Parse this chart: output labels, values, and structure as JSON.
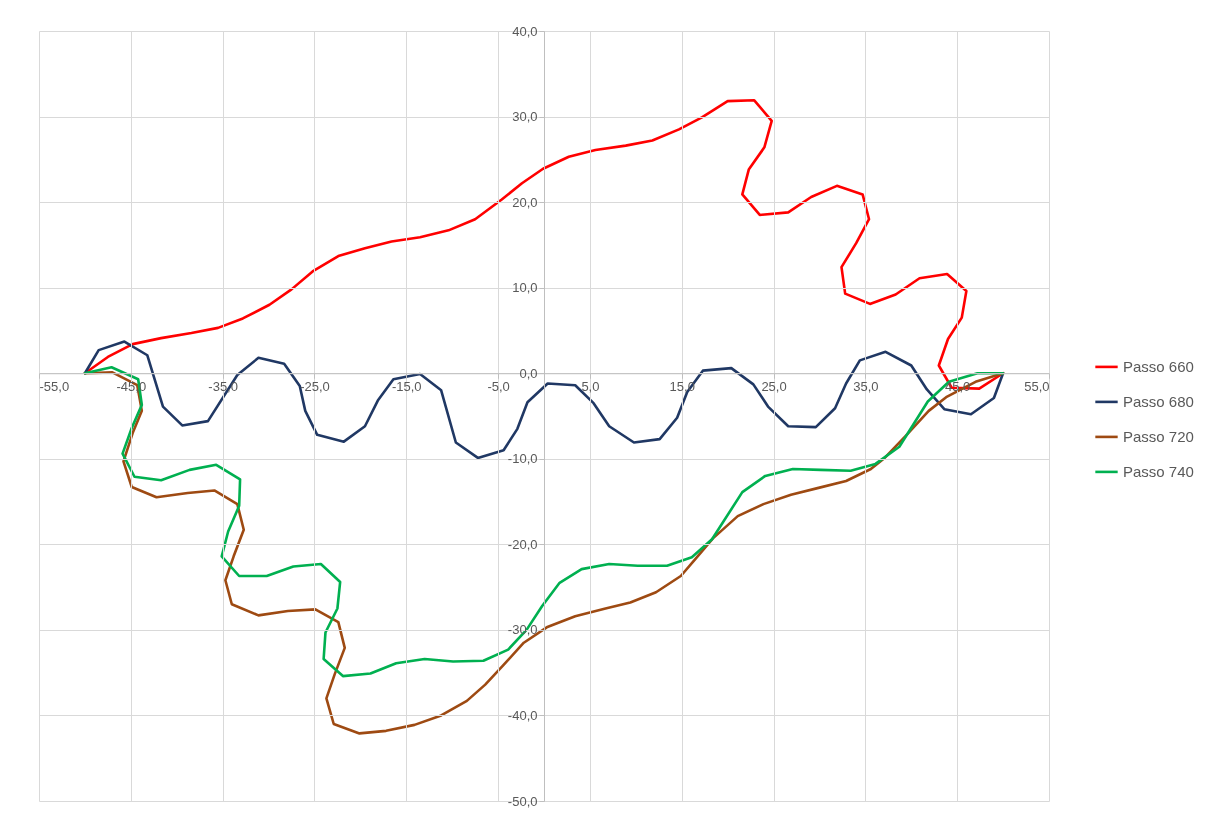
{
  "chart_data": {
    "type": "line",
    "marker": "none",
    "line_style": "solid",
    "grid": true,
    "legend": "right",
    "xlim": [
      -55,
      55
    ],
    "ylim": [
      -50,
      40
    ],
    "xticks": [
      {
        "value": -55,
        "label": "-55,0"
      },
      {
        "value": -45,
        "label": "-45,0"
      },
      {
        "value": -35,
        "label": "-35,0"
      },
      {
        "value": -25,
        "label": "-25,0"
      },
      {
        "value": -15,
        "label": "-15,0"
      },
      {
        "value": -5,
        "label": "-5,0"
      },
      {
        "value": 5,
        "label": "5,0"
      },
      {
        "value": 15,
        "label": "15,0"
      },
      {
        "value": 25,
        "label": "25,0"
      },
      {
        "value": 35,
        "label": "35,0"
      },
      {
        "value": 45,
        "label": "45,0"
      },
      {
        "value": 55,
        "label": "55,0"
      }
    ],
    "yticks": [
      {
        "value": -50,
        "label": "-50,0"
      },
      {
        "value": -40,
        "label": "-40,0"
      },
      {
        "value": -30,
        "label": "-30,0"
      },
      {
        "value": -20,
        "label": "-20,0"
      },
      {
        "value": -10,
        "label": "-10,0"
      },
      {
        "value": 0,
        "label": "0,0"
      },
      {
        "value": 10,
        "label": "10,0"
      },
      {
        "value": 20,
        "label": "20,0"
      },
      {
        "value": 30,
        "label": "30,0"
      },
      {
        "value": 40,
        "label": "40,0"
      }
    ],
    "series": [
      {
        "name": "Passo 660",
        "color": "#ff0000",
        "x": [
          -50,
          -47.5,
          -44.8,
          -41.7,
          -38.4,
          -35.5,
          -32.8,
          -29.9,
          -27.5,
          -25.2,
          -22.4,
          -19.5,
          -16.6,
          -13.5,
          -10.4,
          -7.5,
          -4.6,
          -2.4,
          -0.1,
          2.7,
          5.6,
          8.9,
          11.8,
          14.7,
          17.2,
          20.0,
          22.9,
          24.8,
          24.0,
          22.3,
          21.6,
          23.5,
          26.6,
          29.1,
          31.9,
          34.7,
          35.4,
          34.0,
          32.4,
          32.8,
          35.5,
          38.3,
          40.9,
          43.9,
          46.0,
          45.5,
          44.0,
          43.0,
          44.4,
          47.4,
          50
        ],
        "values": [
          0,
          1.9,
          3.4,
          4.1,
          4.7,
          5.3,
          6.4,
          8.0,
          9.8,
          11.9,
          13.7,
          14.6,
          15.4,
          15.9,
          16.7,
          18.0,
          20.3,
          22.2,
          23.9,
          25.3,
          26.1,
          26.6,
          27.2,
          28.5,
          29.9,
          31.8,
          31.9,
          29.5,
          26.4,
          23.8,
          20.9,
          18.5,
          18.8,
          20.6,
          21.9,
          20.9,
          18.0,
          15.2,
          12.4,
          9.3,
          8.1,
          9.2,
          11.1,
          11.6,
          9.6,
          6.5,
          4.0,
          0.9,
          -1.7,
          -1.8,
          0
        ]
      },
      {
        "name": "Passo 680",
        "color": "#203864",
        "x": [
          -50,
          -48.5,
          -45.7,
          -43.2,
          -41.5,
          -39.4,
          -36.6,
          -33.4,
          -31.1,
          -28.3,
          -26.6,
          -26.0,
          -24.7,
          -21.8,
          -19.5,
          -18.1,
          -16.4,
          -13.5,
          -11.2,
          -9.6,
          -7.2,
          -4.4,
          -2.9,
          -1.8,
          0.4,
          3.4,
          5.4,
          7.1,
          9.8,
          12.6,
          14.5,
          15.6,
          17.3,
          20.4,
          22.8,
          24.4,
          26.6,
          29.6,
          31.7,
          32.9,
          34.4,
          37.2,
          40.0,
          41.7,
          43.6,
          46.5,
          49.0,
          50
        ],
        "values": [
          0,
          2.7,
          3.7,
          2.1,
          -3.9,
          -6.1,
          -5.6,
          -0.2,
          1.8,
          1.1,
          -1.5,
          -4.4,
          -7.2,
          -8.0,
          -6.2,
          -3.2,
          -0.7,
          -0.1,
          -2.0,
          -8.1,
          -9.9,
          -9.0,
          -6.5,
          -3.4,
          -1.2,
          -1.4,
          -3.5,
          -6.2,
          -8.1,
          -7.7,
          -5.2,
          -2.2,
          0.3,
          0.6,
          -1.3,
          -3.9,
          -6.2,
          -6.3,
          -4.1,
          -1.2,
          1.5,
          2.5,
          0.9,
          -1.9,
          -4.2,
          -4.8,
          -2.9,
          0
        ]
      },
      {
        "name": "Passo 720",
        "color": "#9e4a12",
        "x": [
          -50,
          -47.0,
          -44.3,
          -43.8,
          -44.8,
          -45.8,
          -44.9,
          -42.2,
          -38.8,
          -35.9,
          -33.4,
          -32.7,
          -33.8,
          -34.7,
          -34.0,
          -31.1,
          -27.9,
          -24.9,
          -22.4,
          -21.7,
          -22.8,
          -23.7,
          -22.9,
          -20.1,
          -17.2,
          -14.1,
          -11.2,
          -8.4,
          -6.4,
          -4.4,
          -2.2,
          0.3,
          3.4,
          6.7,
          9.4,
          12.2,
          14.9,
          16.5,
          18.4,
          21.1,
          23.9,
          26.9,
          29.9,
          32.9,
          35.6,
          37.0,
          39.5,
          41.9,
          43.8,
          47.0,
          50
        ],
        "values": [
          0,
          0.1,
          -1.4,
          -4.4,
          -7.0,
          -10.3,
          -13.3,
          -14.5,
          -14.0,
          -13.7,
          -15.3,
          -18.3,
          -21.4,
          -24.2,
          -27.0,
          -28.3,
          -27.8,
          -27.6,
          -29.1,
          -32.1,
          -35.2,
          -38.0,
          -41.0,
          -42.1,
          -41.8,
          -41.1,
          -40.0,
          -38.3,
          -36.4,
          -34.1,
          -31.5,
          -29.7,
          -28.4,
          -27.5,
          -26.8,
          -25.6,
          -23.7,
          -21.7,
          -19.3,
          -16.7,
          -15.3,
          -14.2,
          -13.4,
          -12.6,
          -11.2,
          -10.0,
          -7.2,
          -4.4,
          -2.8,
          -1.0,
          0
        ]
      },
      {
        "name": "Passo 740",
        "color": "#00b050",
        "x": [
          -50,
          -47.1,
          -44.2,
          -43.8,
          -44.9,
          -45.9,
          -44.6,
          -41.7,
          -38.6,
          -35.7,
          -33.1,
          -33.2,
          -34.4,
          -35.1,
          -33.2,
          -30.2,
          -27.3,
          -24.3,
          -22.2,
          -22.5,
          -23.8,
          -24.0,
          -21.9,
          -18.9,
          -16.1,
          -13.0,
          -9.9,
          -6.6,
          -3.9,
          -1.9,
          -0.2,
          1.7,
          4.1,
          7.1,
          10.2,
          13.4,
          16.1,
          18.3,
          21.6,
          24.1,
          27.1,
          30.1,
          33.4,
          36.1,
          38.7,
          41.8,
          44.1,
          47.2,
          50
        ],
        "values": [
          0,
          0.7,
          -0.7,
          -3.7,
          -6.4,
          -9.4,
          -12.1,
          -12.5,
          -11.3,
          -10.7,
          -12.4,
          -15.5,
          -18.5,
          -21.4,
          -23.7,
          -23.7,
          -22.6,
          -22.3,
          -24.4,
          -27.5,
          -30.3,
          -33.4,
          -35.4,
          -35.1,
          -33.9,
          -33.4,
          -33.7,
          -33.6,
          -32.3,
          -30.0,
          -27.2,
          -24.5,
          -22.9,
          -22.3,
          -22.5,
          -22.5,
          -21.5,
          -19.4,
          -13.9,
          -12.0,
          -11.2,
          -11.3,
          -11.4,
          -10.6,
          -8.6,
          -3.3,
          -1.0,
          0.0,
          0
        ]
      }
    ]
  }
}
